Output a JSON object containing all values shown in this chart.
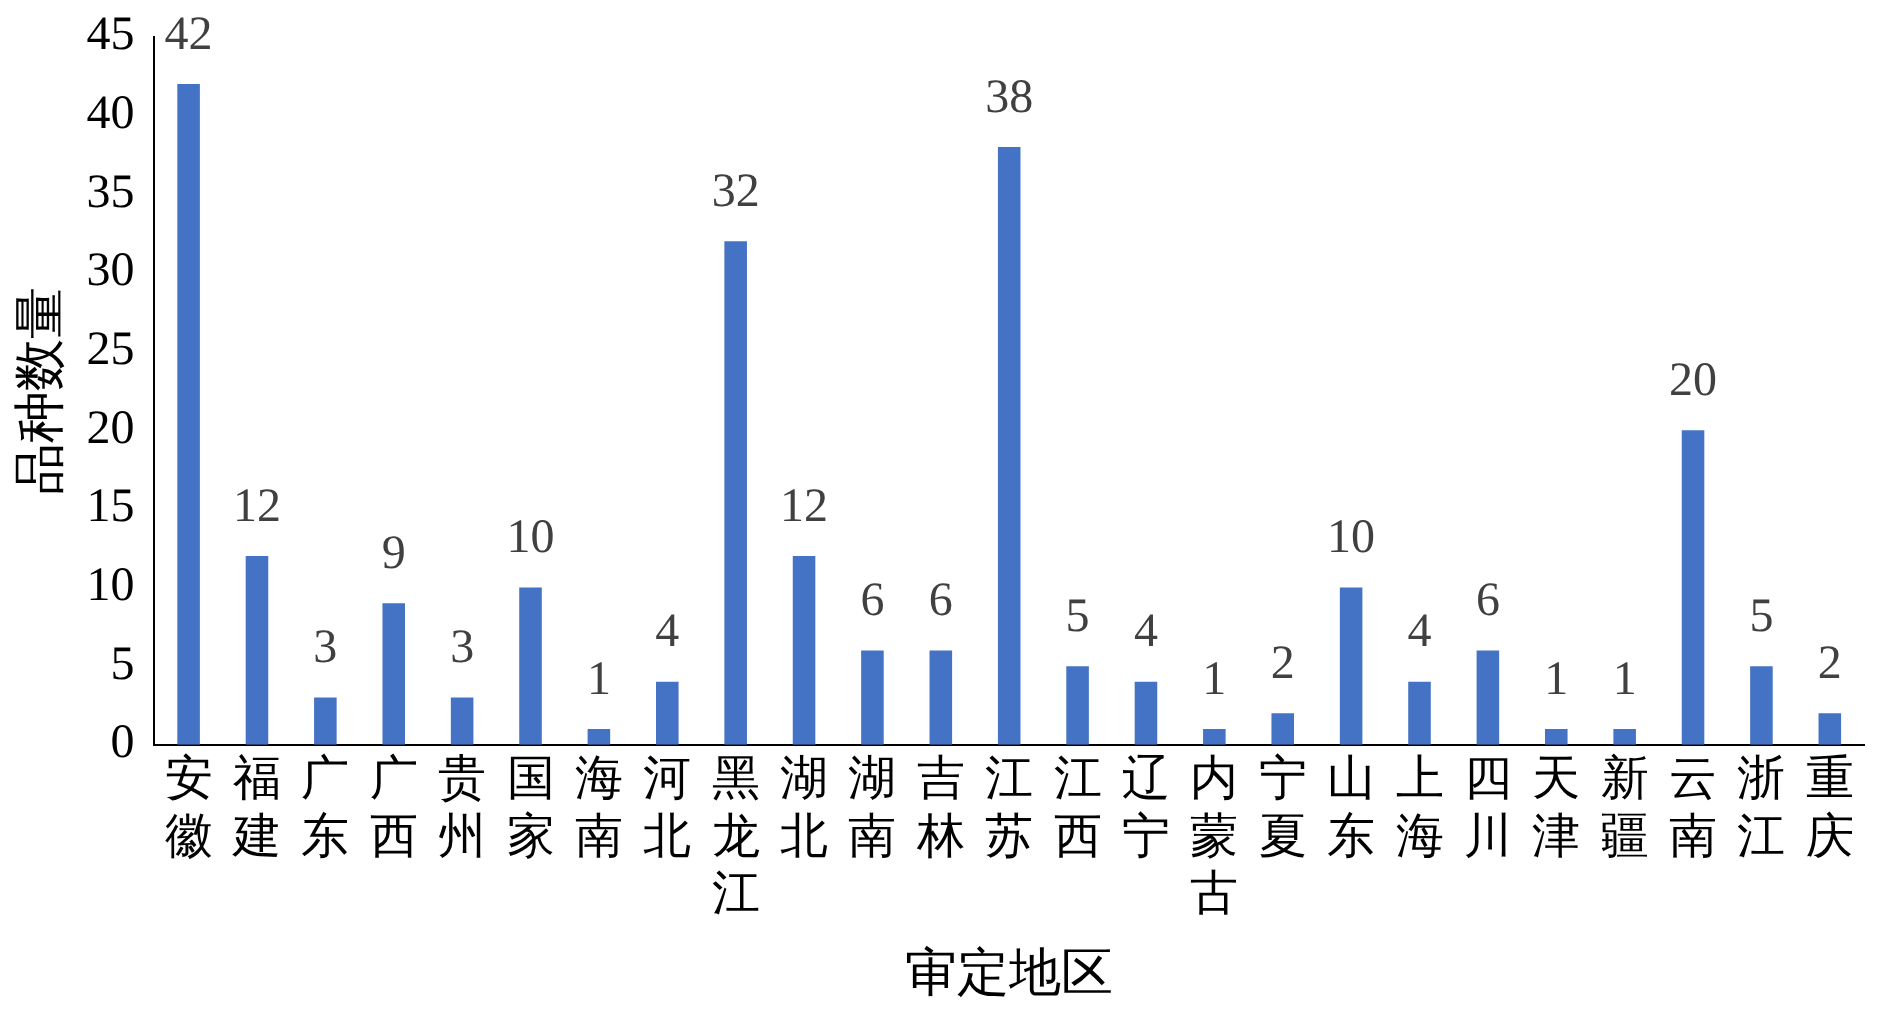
{
  "chart_data": {
    "type": "bar",
    "xlabel": "审定地区",
    "ylabel": "品种数量",
    "categories": [
      "安徽",
      "福建",
      "广东",
      "广西",
      "贵州",
      "国家",
      "海南",
      "河北",
      "黑龙江",
      "湖北",
      "湖南",
      "吉林",
      "江苏",
      "江西",
      "辽宁",
      "内蒙古",
      "宁夏",
      "山东",
      "上海",
      "四川",
      "天津",
      "新疆",
      "云南",
      "浙江",
      "重庆"
    ],
    "values": [
      42,
      12,
      3,
      9,
      3,
      10,
      1,
      4,
      32,
      12,
      6,
      6,
      38,
      5,
      4,
      1,
      2,
      10,
      4,
      6,
      1,
      1,
      20,
      5,
      2
    ],
    "color": "#4472c4",
    "ylim": [
      0,
      45
    ],
    "yticks": [
      0,
      5,
      10,
      15,
      20,
      25,
      30,
      35,
      40,
      45
    ],
    "grid": false,
    "legend": false,
    "data_labels": true
  }
}
